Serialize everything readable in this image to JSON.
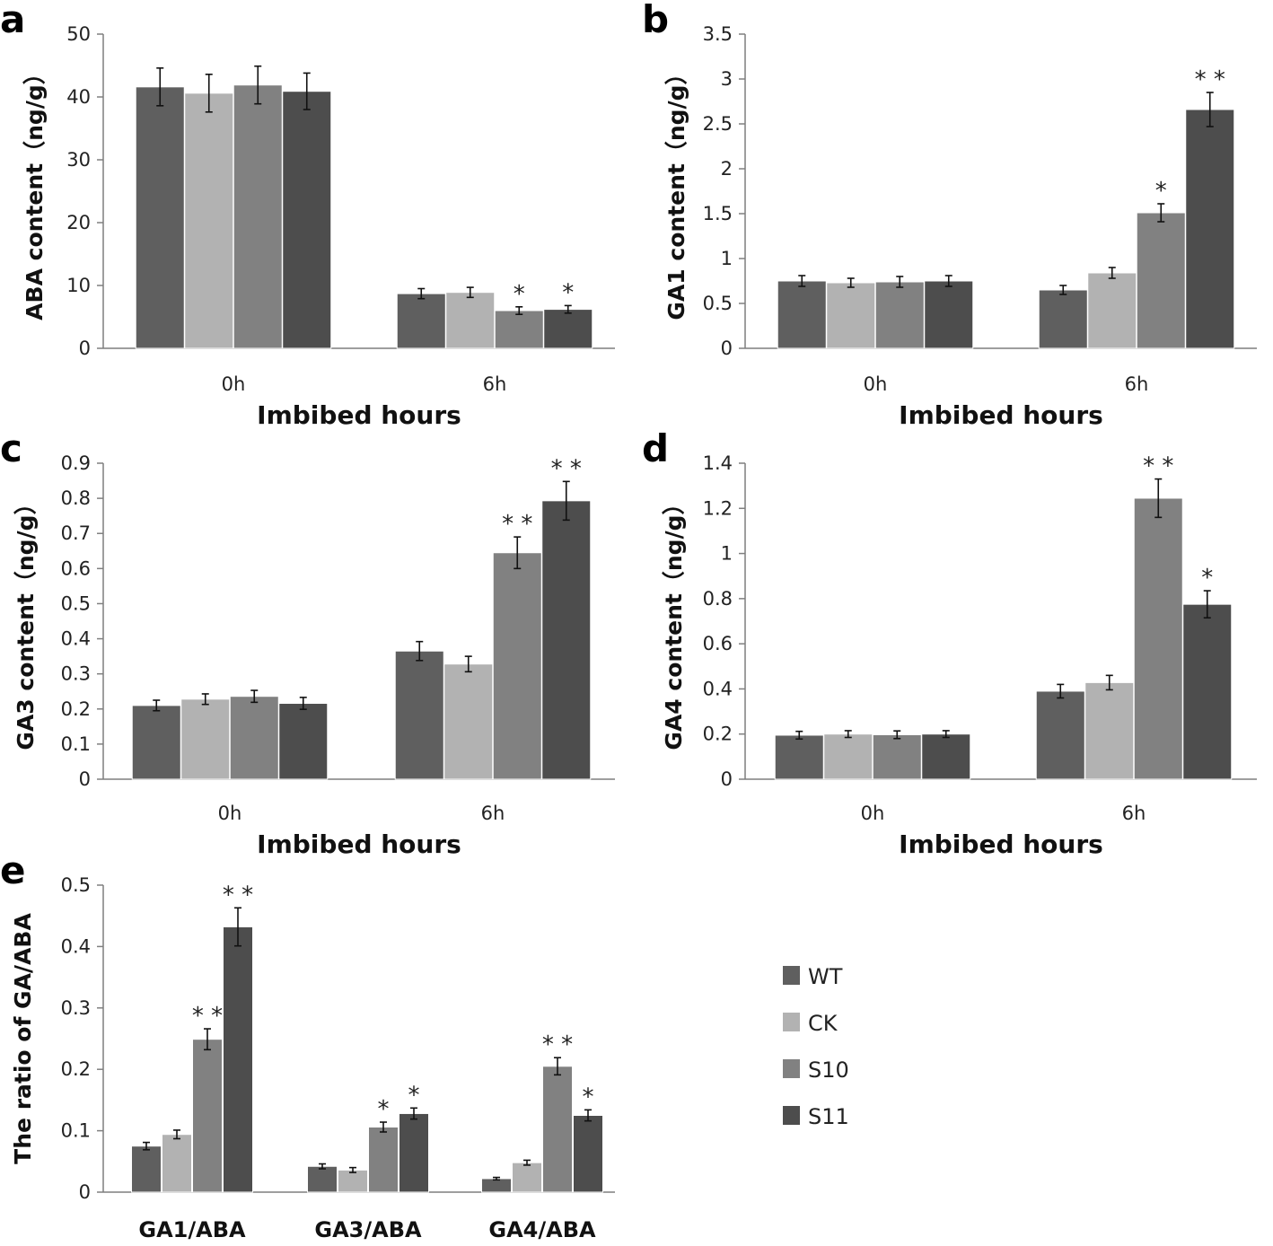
{
  "colors": {
    "WT": "#5f5f5f",
    "CK": "#b2b2b2",
    "S10": "#818181",
    "S11": "#4d4d4d"
  },
  "legend": {
    "items": [
      "WT",
      "CK",
      "S10",
      "S11"
    ]
  },
  "chart_data": [
    {
      "id": "a",
      "letter": "a",
      "type": "bar",
      "categories": [
        "0h",
        "6h"
      ],
      "xlabel": "Imbibed hours",
      "ylabel": "ABA content（ng/g）",
      "ylim": [
        0,
        50
      ],
      "yticks": [
        "0",
        "10",
        "20",
        "30",
        "40",
        "50"
      ],
      "series": [
        {
          "name": "WT",
          "values": [
            41.6,
            8.7
          ],
          "errors": [
            3.0,
            0.8
          ],
          "sig": [
            "",
            ""
          ]
        },
        {
          "name": "CK",
          "values": [
            40.6,
            8.9
          ],
          "errors": [
            3.0,
            0.8
          ],
          "sig": [
            "",
            ""
          ]
        },
        {
          "name": "S10",
          "values": [
            41.9,
            6.0
          ],
          "errors": [
            3.0,
            0.6
          ],
          "sig": [
            "",
            "*"
          ]
        },
        {
          "name": "S11",
          "values": [
            40.9,
            6.2
          ],
          "errors": [
            2.9,
            0.6
          ],
          "sig": [
            "",
            "*"
          ]
        }
      ]
    },
    {
      "id": "b",
      "letter": "b",
      "type": "bar",
      "categories": [
        "0h",
        "6h"
      ],
      "xlabel": "Imbibed hours",
      "ylabel": "GA1 content（ng/g）",
      "ylim": [
        0,
        3.5
      ],
      "yticks": [
        "0",
        "0.5",
        "1",
        "1.5",
        "2",
        "2.5",
        "3",
        "3.5"
      ],
      "series": [
        {
          "name": "WT",
          "values": [
            0.75,
            0.65
          ],
          "errors": [
            0.06,
            0.05
          ],
          "sig": [
            "",
            ""
          ]
        },
        {
          "name": "CK",
          "values": [
            0.73,
            0.84
          ],
          "errors": [
            0.05,
            0.06
          ],
          "sig": [
            "",
            ""
          ]
        },
        {
          "name": "S10",
          "values": [
            0.74,
            1.51
          ],
          "errors": [
            0.06,
            0.1
          ],
          "sig": [
            "",
            "*"
          ]
        },
        {
          "name": "S11",
          "values": [
            0.75,
            2.66
          ],
          "errors": [
            0.06,
            0.19
          ],
          "sig": [
            "",
            "**"
          ]
        }
      ]
    },
    {
      "id": "c",
      "letter": "c",
      "type": "bar",
      "categories": [
        "0h",
        "6h"
      ],
      "xlabel": "Imbibed hours",
      "ylabel": "GA3 content（ng/g）",
      "ylim": [
        0,
        0.9
      ],
      "yticks": [
        "0",
        "0.1",
        "0.2",
        "0.3",
        "0.4",
        "0.5",
        "0.6",
        "0.7",
        "0.8",
        "0.9"
      ],
      "series": [
        {
          "name": "WT",
          "values": [
            0.21,
            0.365
          ],
          "errors": [
            0.015,
            0.027
          ],
          "sig": [
            "",
            ""
          ]
        },
        {
          "name": "CK",
          "values": [
            0.228,
            0.328
          ],
          "errors": [
            0.015,
            0.022
          ],
          "sig": [
            "",
            ""
          ]
        },
        {
          "name": "S10",
          "values": [
            0.236,
            0.645
          ],
          "errors": [
            0.017,
            0.045
          ],
          "sig": [
            "",
            "**"
          ]
        },
        {
          "name": "S11",
          "values": [
            0.216,
            0.793
          ],
          "errors": [
            0.017,
            0.055
          ],
          "sig": [
            "",
            "**"
          ]
        }
      ]
    },
    {
      "id": "d",
      "letter": "d",
      "type": "bar",
      "categories": [
        "0h",
        "6h"
      ],
      "xlabel": "Imbibed hours",
      "ylabel": "GA4 content（ng/g）",
      "ylim": [
        0,
        1.4
      ],
      "yticks": [
        "0",
        "0.2",
        "0.4",
        "0.6",
        "0.8",
        "1",
        "1.2",
        "1.4"
      ],
      "series": [
        {
          "name": "WT",
          "values": [
            0.195,
            0.39
          ],
          "errors": [
            0.017,
            0.03
          ],
          "sig": [
            "",
            ""
          ]
        },
        {
          "name": "CK",
          "values": [
            0.2,
            0.428
          ],
          "errors": [
            0.015,
            0.032
          ],
          "sig": [
            "",
            ""
          ]
        },
        {
          "name": "S10",
          "values": [
            0.197,
            1.245
          ],
          "errors": [
            0.017,
            0.085
          ],
          "sig": [
            "",
            "**"
          ]
        },
        {
          "name": "S11",
          "values": [
            0.2,
            0.775
          ],
          "errors": [
            0.015,
            0.06
          ],
          "sig": [
            "",
            "*"
          ]
        }
      ]
    },
    {
      "id": "e",
      "letter": "e",
      "type": "bar",
      "categories": [
        "GA1/ABA",
        "GA3/ABA",
        "GA4/ABA"
      ],
      "xlabel": "",
      "ylabel": "The ratio of GA/ABA",
      "ylim": [
        0,
        0.5
      ],
      "yticks": [
        "0",
        "0.1",
        "0.2",
        "0.3",
        "0.4",
        "0.5"
      ],
      "series": [
        {
          "name": "WT",
          "values": [
            0.075,
            0.042,
            0.022
          ],
          "errors": [
            0.006,
            0.004,
            0.002
          ],
          "sig": [
            "",
            "",
            ""
          ]
        },
        {
          "name": "CK",
          "values": [
            0.094,
            0.036,
            0.048
          ],
          "errors": [
            0.007,
            0.004,
            0.004
          ],
          "sig": [
            "",
            "",
            ""
          ]
        },
        {
          "name": "S10",
          "values": [
            0.249,
            0.106,
            0.205
          ],
          "errors": [
            0.017,
            0.008,
            0.014
          ],
          "sig": [
            "**",
            "*",
            "**"
          ]
        },
        {
          "name": "S11",
          "values": [
            0.432,
            0.128,
            0.125
          ],
          "errors": [
            0.031,
            0.009,
            0.009
          ],
          "sig": [
            "**",
            "*",
            "*"
          ]
        }
      ]
    }
  ]
}
